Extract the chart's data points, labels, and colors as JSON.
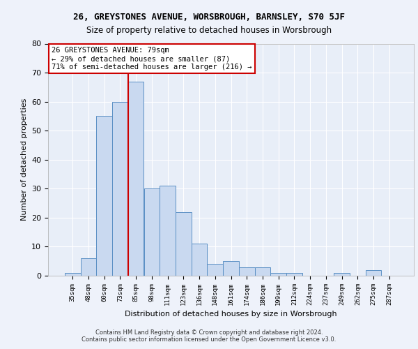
{
  "title_line1": "26, GREYSTONES AVENUE, WORSBROUGH, BARNSLEY, S70 5JF",
  "title_line2": "Size of property relative to detached houses in Worsbrough",
  "xlabel": "Distribution of detached houses by size in Worsbrough",
  "ylabel": "Number of detached properties",
  "categories": [
    "35sqm",
    "48sqm",
    "60sqm",
    "73sqm",
    "85sqm",
    "98sqm",
    "111sqm",
    "123sqm",
    "136sqm",
    "148sqm",
    "161sqm",
    "174sqm",
    "186sqm",
    "199sqm",
    "212sqm",
    "224sqm",
    "237sqm",
    "249sqm",
    "262sqm",
    "275sqm",
    "287sqm"
  ],
  "values": [
    1,
    6,
    55,
    60,
    67,
    30,
    31,
    22,
    11,
    4,
    5,
    3,
    3,
    1,
    1,
    0,
    0,
    1,
    0,
    2,
    0
  ],
  "bar_color": "#c9d9f0",
  "bar_edge_color": "#5a8fc4",
  "vertical_line_color": "#cc0000",
  "annotation_text": "26 GREYSTONES AVENUE: 79sqm\n← 29% of detached houses are smaller (87)\n71% of semi-detached houses are larger (216) →",
  "annotation_box_color": "#ffffff",
  "annotation_box_edge": "#cc0000",
  "ylim": [
    0,
    80
  ],
  "yticks": [
    0,
    10,
    20,
    30,
    40,
    50,
    60,
    70,
    80
  ],
  "footer_line1": "Contains HM Land Registry data © Crown copyright and database right 2024.",
  "footer_line2": "Contains public sector information licensed under the Open Government Licence v3.0.",
  "bg_color": "#eef2fa",
  "plot_bg_color": "#e8eef8",
  "grid_color": "#ffffff"
}
